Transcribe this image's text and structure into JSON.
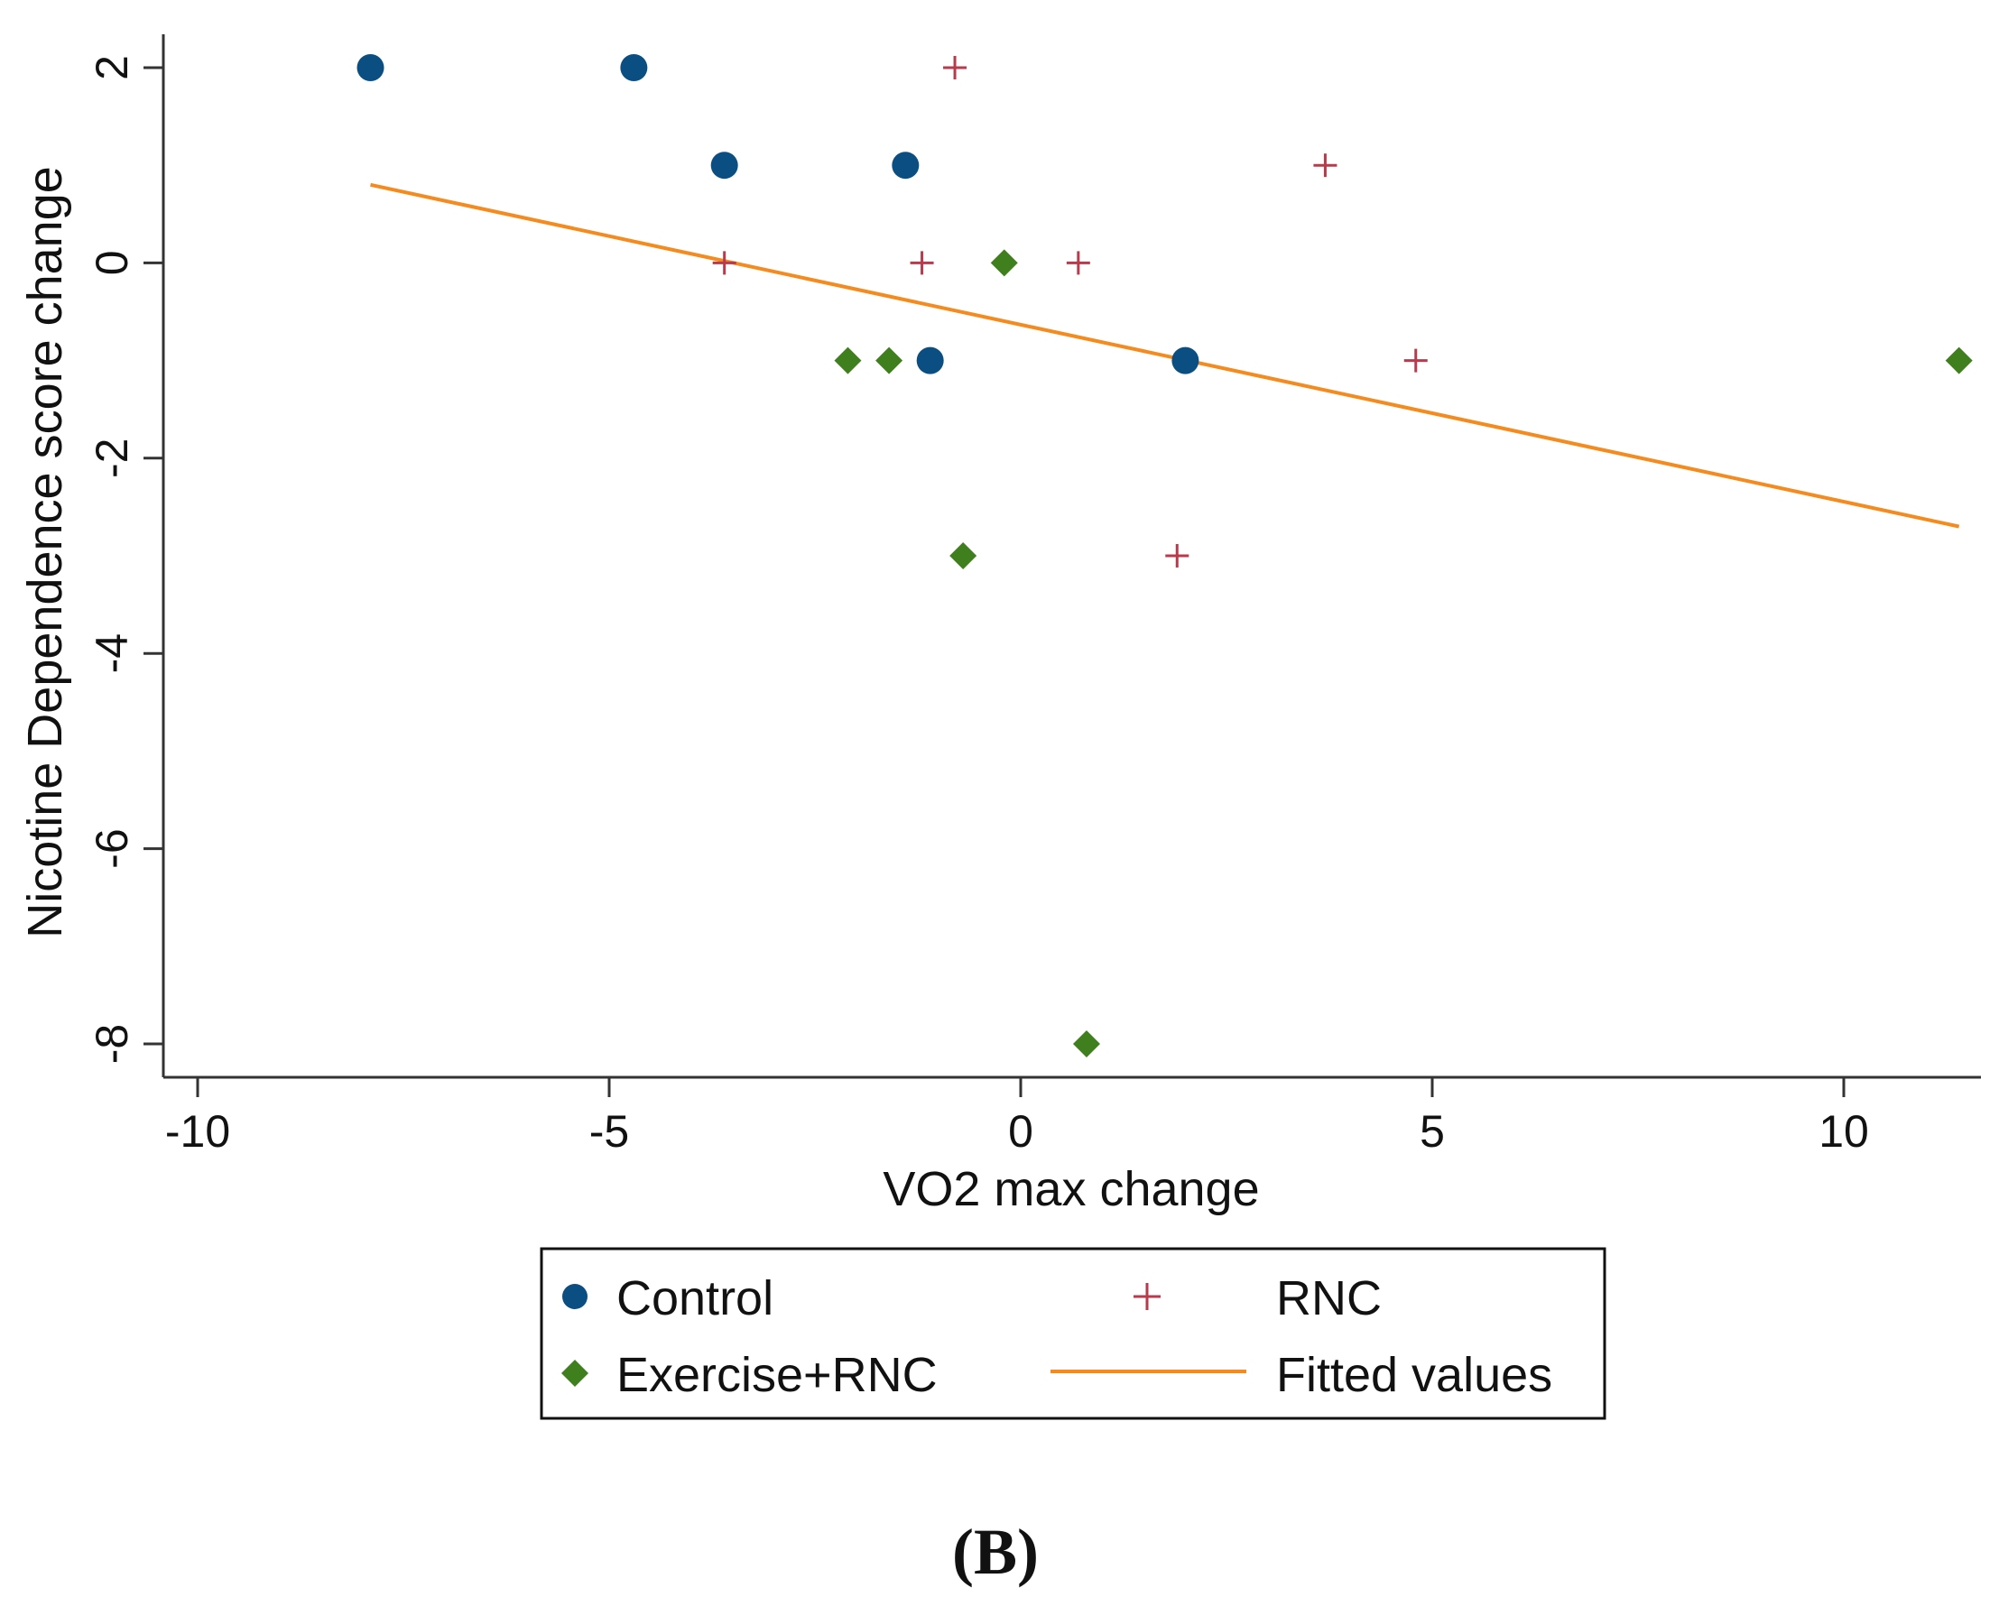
{
  "chart_data": {
    "type": "scatter",
    "xlabel": "VO2 max change",
    "ylabel": "Nicotine Dependence score change",
    "xlim": [
      -10.4,
      11.7
    ],
    "ylim": [
      -8.35,
      2.35
    ],
    "x_ticks": [
      -10,
      -5,
      0,
      5,
      10
    ],
    "x_tick_labels": [
      "-10",
      "-5",
      "0",
      "5",
      "10"
    ],
    "y_ticks": [
      2,
      0,
      -2,
      -4,
      -6,
      -8
    ],
    "y_tick_labels": [
      "2",
      "0",
      "-2",
      "-4",
      "-6",
      "-8"
    ],
    "grid": false,
    "legend_position": "bottom-center",
    "series": [
      {
        "name": "Control",
        "marker": "circle",
        "color": "#0b4f82",
        "points": [
          {
            "x": -7.9,
            "y": 2
          },
          {
            "x": -4.7,
            "y": 2
          },
          {
            "x": -3.6,
            "y": 1
          },
          {
            "x": -1.4,
            "y": 1
          },
          {
            "x": -1.1,
            "y": -1
          },
          {
            "x": 2.0,
            "y": -1
          }
        ]
      },
      {
        "name": "RNC",
        "marker": "plus",
        "color": "#b83a4b",
        "points": [
          {
            "x": -0.8,
            "y": 2
          },
          {
            "x": 3.7,
            "y": 1
          },
          {
            "x": -3.6,
            "y": 0
          },
          {
            "x": -1.2,
            "y": 0
          },
          {
            "x": 0.7,
            "y": 0
          },
          {
            "x": 4.8,
            "y": -1
          },
          {
            "x": 1.9,
            "y": -3
          }
        ]
      },
      {
        "name": "Exercise+RNC",
        "marker": "diamond",
        "color": "#3f7f1d",
        "points": [
          {
            "x": -0.2,
            "y": 0
          },
          {
            "x": -2.1,
            "y": -1
          },
          {
            "x": -1.6,
            "y": -1
          },
          {
            "x": 11.4,
            "y": -1
          },
          {
            "x": -0.7,
            "y": -3
          },
          {
            "x": 0.8,
            "y": -8
          }
        ]
      },
      {
        "name": "Fitted values",
        "marker": "line",
        "color": "#f58a1f",
        "points": [
          {
            "x": -7.9,
            "y": 0.8
          },
          {
            "x": 11.4,
            "y": -2.7
          }
        ]
      }
    ],
    "legend": [
      {
        "label": "Control",
        "marker": "circle",
        "color": "#0b4f82"
      },
      {
        "label": "RNC",
        "marker": "plus",
        "color": "#b83a4b"
      },
      {
        "label": "Exercise+RNC",
        "marker": "diamond",
        "color": "#3f7f1d"
      },
      {
        "label": "Fitted values",
        "marker": "line",
        "color": "#f58a1f"
      }
    ]
  },
  "panel_label": "(B)"
}
